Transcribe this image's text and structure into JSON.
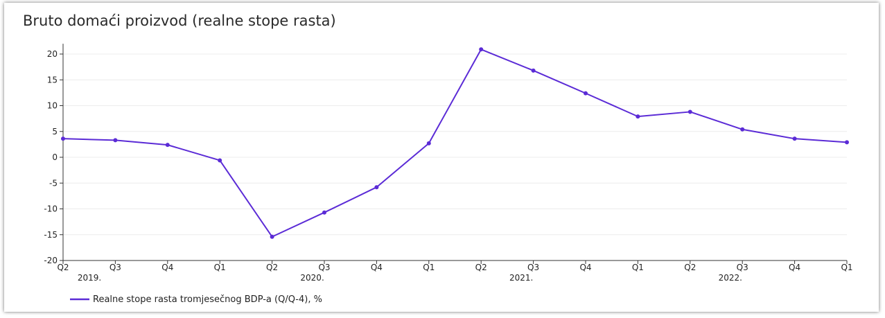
{
  "chart_data": {
    "type": "line",
    "title": "Bruto domaći proizvod (realne stope rasta)",
    "xlabel": "",
    "ylabel": "",
    "ylim": [
      -20,
      22
    ],
    "yticks": [
      20,
      15,
      10,
      5,
      0,
      -5,
      -10,
      -15,
      -20
    ],
    "grid": true,
    "legend_position": "bottom-left",
    "categories": [
      "Q2",
      "Q3",
      "Q4",
      "Q1",
      "Q2",
      "Q3",
      "Q4",
      "Q1",
      "Q2",
      "Q3",
      "Q4",
      "Q1",
      "Q2",
      "Q3",
      "Q4",
      "Q1"
    ],
    "year_labels": [
      {
        "label": "2019.",
        "index": 0
      },
      {
        "label": "2020.",
        "index": 4
      },
      {
        "label": "2021.",
        "index": 8
      },
      {
        "label": "2022.",
        "index": 12
      }
    ],
    "series": [
      {
        "name": "Realne stope rasta tromjesečnog BDP-a (Q/Q-4), %",
        "color": "#5b2bd6",
        "values": [
          3.6,
          3.3,
          2.4,
          -0.6,
          -15.4,
          -10.7,
          -5.8,
          2.7,
          20.9,
          16.8,
          12.4,
          7.9,
          8.8,
          5.4,
          3.6,
          2.9
        ]
      }
    ]
  }
}
